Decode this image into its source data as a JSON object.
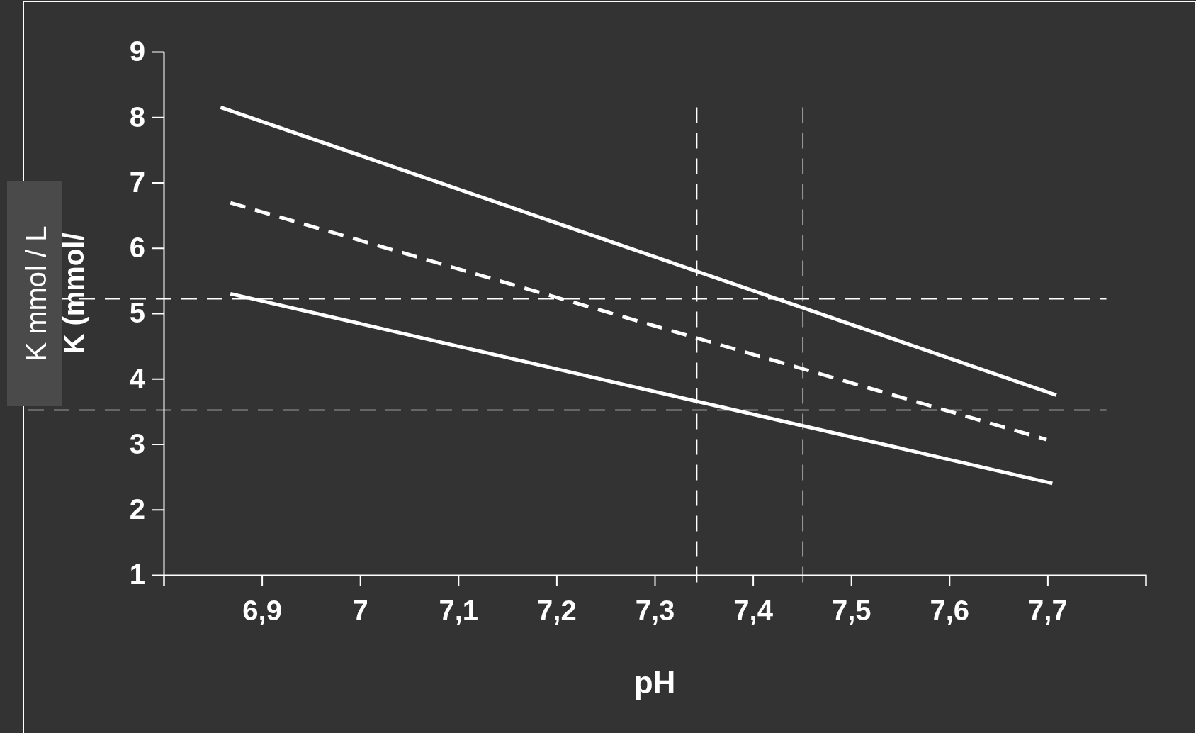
{
  "chart_data": {
    "type": "line",
    "xlabel": "pH",
    "ylabel": "K mmol / L",
    "annotations": [
      "K (mmol/"
    ],
    "xlim": [
      6.8,
      7.8
    ],
    "xticks": [
      {
        "value": 6.8,
        "label": null
      },
      {
        "value": 6.9,
        "label": "6,9"
      },
      7,
      {
        "value": 7.1,
        "label": "7,1"
      },
      {
        "value": 7.2,
        "label": "7,2"
      },
      {
        "value": 7.3,
        "label": "7,3"
      },
      {
        "value": 7.4,
        "label": "7,4"
      },
      {
        "value": 7.5,
        "label": "7,5"
      },
      {
        "value": 7.6,
        "label": "7,6"
      },
      {
        "value": 7.7,
        "label": "7,7"
      },
      {
        "value": 7.8,
        "label": null
      }
    ],
    "ylim": [
      1,
      9
    ],
    "yticks": [
      1,
      2,
      3,
      4,
      5,
      6,
      7,
      8,
      9
    ],
    "marker": "none",
    "series": [
      {
        "color": "#ffffff",
        "x": [
          6.858,
          7.709
        ],
        "values": [
          8.15,
          3.75
        ],
        "line_style": "solid"
      },
      {
        "color": "#ffffff",
        "x": [
          6.868,
          7.699
        ],
        "values": [
          6.69,
          3.07
        ],
        "line_style": "dashed"
      },
      {
        "color": "#ffffff",
        "x": [
          6.868,
          7.705
        ],
        "values": [
          5.3,
          2.4
        ],
        "line_style": "solid"
      }
    ],
    "ref_lines": [
      {
        "axis": "y",
        "value": 5.22,
        "label": null,
        "color": "#ffffff",
        "line_style": "dashed"
      },
      {
        "axis": "y",
        "value": 3.52,
        "label": null,
        "color": "#ffffff",
        "line_style": "dashed"
      },
      {
        "axis": "x",
        "value": 7.343,
        "label": null,
        "color": "#ffffff",
        "line_style": "dashed"
      },
      {
        "axis": "x",
        "value": 7.451,
        "label": null,
        "color": "#ffffff",
        "line_style": "dashed"
      }
    ]
  }
}
